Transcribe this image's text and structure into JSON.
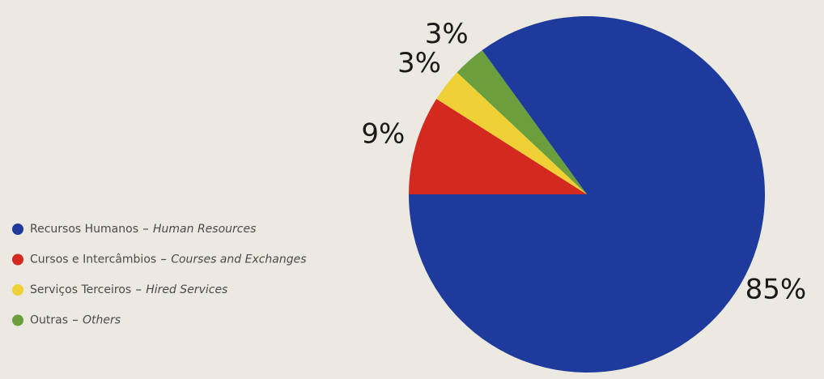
{
  "chart_data": {
    "type": "pie",
    "categories": [
      "Recursos Humanos",
      "Cursos e Intercâmbios",
      "Serviços Terceiros",
      "Outras"
    ],
    "categories_en": [
      "Human Resources",
      "Courses and Exchanges",
      "Hired Services",
      "Others"
    ],
    "values": [
      85,
      9,
      3,
      3
    ],
    "value_labels": [
      "85%",
      "9%",
      "3%",
      "3%"
    ],
    "colors": [
      "#1e3a9c",
      "#d3291f",
      "#efd035",
      "#6b9f3e"
    ]
  }
}
